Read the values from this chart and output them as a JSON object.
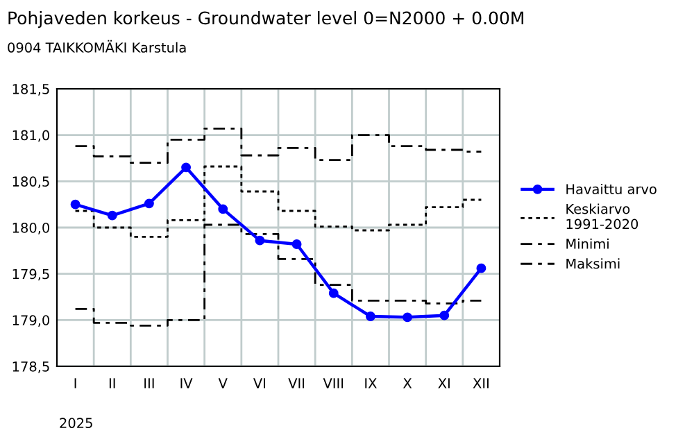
{
  "chart_data": {
    "type": "line",
    "title": "Pohjaveden korkeus - Groundwater level 0=N2000 + 0.00M",
    "subtitle": "0904 TAIKKOMÄKI Karstula",
    "categories": [
      "I",
      "II",
      "III",
      "IV",
      "V",
      "VI",
      "VII",
      "VIII",
      "IX",
      "X",
      "XI",
      "XII"
    ],
    "series": [
      {
        "name": "Havaittu arvo",
        "color": "#0000ff",
        "marker": "circle",
        "line_style": "solid",
        "values": [
          180.25,
          180.13,
          180.26,
          180.65,
          180.2,
          179.86,
          179.82,
          179.29,
          179.04,
          179.03,
          179.05,
          179.56
        ]
      },
      {
        "name": "Keskiarvo\n1991-2020",
        "type": "step",
        "color": "#000000",
        "marker": "none",
        "line_style": "dotted",
        "values": [
          180.18,
          180.0,
          179.9,
          180.08,
          180.66,
          180.39,
          180.18,
          180.01,
          179.97,
          180.03,
          180.22,
          180.3
        ]
      },
      {
        "name": "Minimi",
        "type": "step",
        "color": "#000000",
        "marker": "none",
        "line_style": "dashed",
        "values": [
          179.12,
          178.97,
          178.94,
          179.0,
          180.03,
          179.93,
          179.66,
          179.38,
          179.21,
          179.21,
          179.18,
          179.21
        ]
      },
      {
        "name": "Maksimi",
        "type": "step",
        "color": "#000000",
        "marker": "none",
        "line_style": "dashed",
        "values": [
          180.88,
          180.77,
          180.7,
          180.95,
          181.07,
          180.78,
          180.86,
          180.73,
          181.0,
          180.88,
          180.84,
          180.82
        ]
      }
    ],
    "ylim": [
      178.5,
      181.5
    ],
    "yticks": [
      {
        "value": 178.5,
        "label": "178,5"
      },
      {
        "value": 179.0,
        "label": "179,0"
      },
      {
        "value": 179.5,
        "label": "179,5"
      },
      {
        "value": 180.0,
        "label": "180,0"
      },
      {
        "value": 180.5,
        "label": "180,5"
      },
      {
        "value": 181.0,
        "label": "181,0"
      },
      {
        "value": 181.5,
        "label": "181,5"
      }
    ],
    "grid": true,
    "legend": "right",
    "annotations": [
      "2025"
    ]
  }
}
